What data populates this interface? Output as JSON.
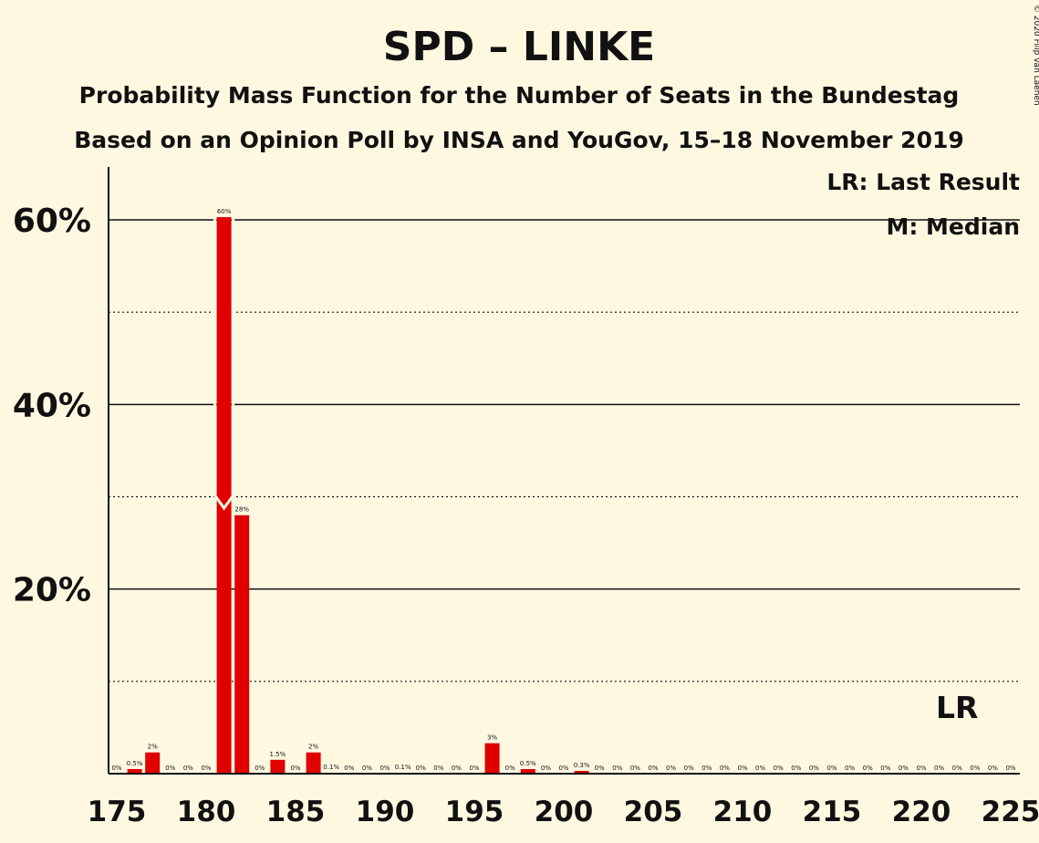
{
  "chart_data": {
    "type": "bar",
    "title": "SPD – LINKE",
    "subtitle": "Probability Mass Function for the Number of Seats in the Bundestag",
    "subtitle2": "Based on an Opinion Poll by INSA and YouGov, 15–18 November 2019",
    "copyright": "© 2020 Filip van Laenen",
    "legend": [
      "LR: Last Result",
      "M: Median"
    ],
    "last_result_label": "LR",
    "last_result_seat": 222,
    "median_seat": 181,
    "x": [
      175,
      176,
      177,
      178,
      179,
      180,
      181,
      182,
      183,
      184,
      185,
      186,
      187,
      188,
      189,
      190,
      191,
      192,
      193,
      194,
      195,
      196,
      197,
      198,
      199,
      200,
      201,
      202,
      203,
      204,
      205,
      206,
      207,
      208,
      209,
      210,
      211,
      212,
      213,
      214,
      215,
      216,
      217,
      218,
      219,
      220,
      221,
      222,
      223,
      224,
      225
    ],
    "values": [
      0,
      0.5,
      2.3,
      0,
      0,
      0,
      60.3,
      28,
      0,
      1.5,
      0,
      2.3,
      0.1,
      0,
      0,
      0,
      0.1,
      0,
      0,
      0,
      0,
      3.3,
      0,
      0.5,
      0,
      0,
      0.3,
      0,
      0,
      0,
      0,
      0,
      0,
      0,
      0,
      0,
      0,
      0,
      0,
      0,
      0,
      0,
      0,
      0,
      0,
      0,
      0,
      0,
      0,
      0,
      0
    ],
    "data_labels": [
      "0%",
      "0.5%",
      "2%",
      "0%",
      "0%",
      "0%",
      "60%",
      "28%",
      "0%",
      "1.5%",
      "0%",
      "2%",
      "0.1%",
      "0%",
      "0%",
      "0%",
      "0.1%",
      "0%",
      "0%",
      "0%",
      "0%",
      "3%",
      "0%",
      "0.5%",
      "0%",
      "0%",
      "0.3%",
      "0%",
      "0%",
      "0%",
      "0%",
      "0%",
      "0%",
      "0%",
      "0%",
      "0%",
      "0%",
      "0%",
      "0%",
      "0%",
      "0%",
      "0%",
      "0%",
      "0%",
      "0%",
      "0%",
      "0%",
      "0%",
      "0%",
      "0%",
      "0%"
    ],
    "xticks": [
      175,
      180,
      185,
      190,
      195,
      200,
      205,
      210,
      215,
      220,
      225
    ],
    "xtick_labels": [
      "175",
      "180",
      "185",
      "190",
      "195",
      "200",
      "205",
      "210",
      "215",
      "220",
      "225"
    ],
    "yticks": [
      20,
      40,
      60
    ],
    "ytick_labels": [
      "20%",
      "40%",
      "60%"
    ],
    "ylim": [
      0,
      65.5
    ],
    "xlim": [
      175,
      225
    ],
    "grid": "solid at 20%, 40%, 60%; dotted at 10%, 30%, 50%",
    "bar_color": "#e00000"
  }
}
